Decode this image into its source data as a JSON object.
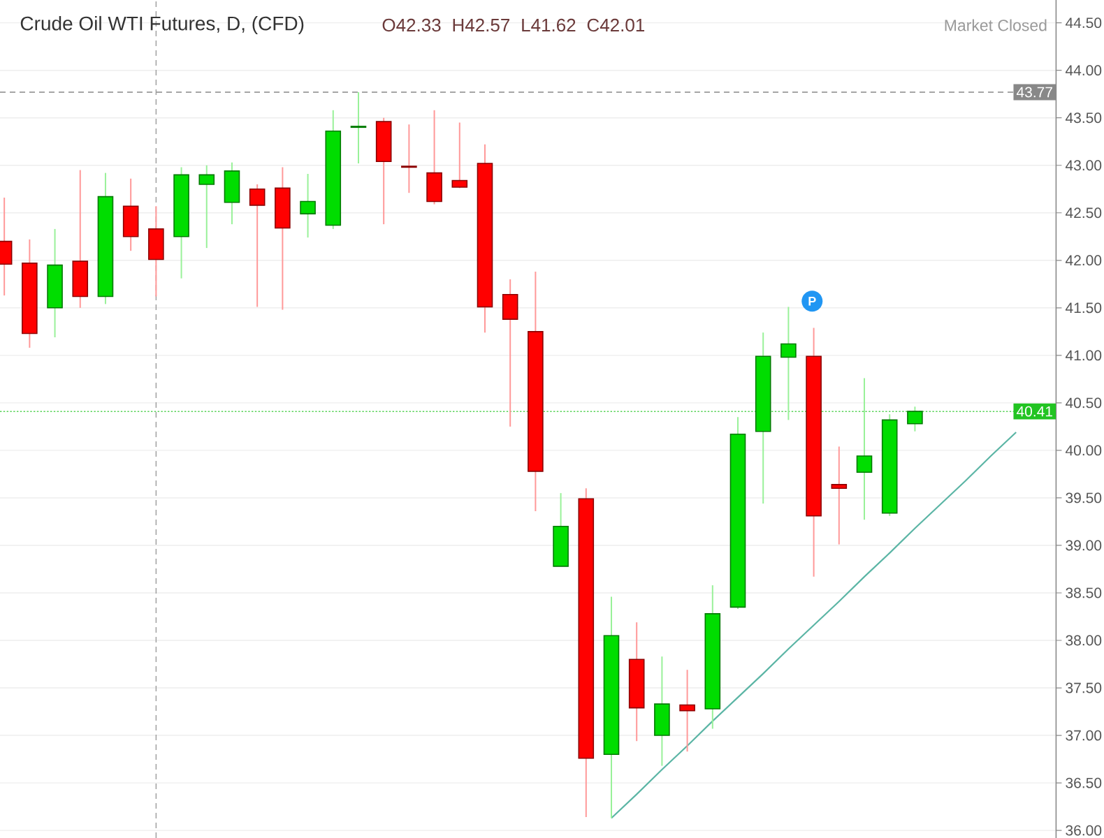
{
  "chart_data": {
    "type": "candlestick",
    "title": "Crude Oil WTI Futures, D, (CFD)",
    "annotations": [
      "O42.33",
      "H42.57",
      "L41.62",
      "C42.01",
      "Market Closed",
      {
        "text": "P",
        "y": 41.57
      }
    ],
    "categories": [
      null,
      null,
      null,
      null,
      null,
      null,
      null,
      null,
      null,
      null,
      null,
      null,
      null,
      null,
      null,
      null,
      null,
      null,
      null,
      null,
      null,
      null,
      null,
      null,
      null,
      null,
      null,
      null,
      null,
      null,
      null,
      null,
      null,
      null,
      null,
      null,
      null,
      null,
      null,
      null,
      null
    ],
    "ohlc": [
      [
        42.2,
        42.66,
        41.63,
        41.96
      ],
      [
        41.97,
        42.22,
        41.08,
        41.23
      ],
      [
        41.5,
        42.33,
        41.19,
        41.95
      ],
      [
        41.99,
        42.95,
        41.5,
        41.62
      ],
      [
        41.62,
        42.92,
        41.54,
        42.67
      ],
      [
        42.57,
        42.86,
        42.1,
        42.25
      ],
      [
        42.33,
        42.57,
        41.62,
        42.01
      ],
      [
        42.25,
        42.98,
        41.81,
        42.9
      ],
      [
        42.8,
        43.0,
        42.13,
        42.9
      ],
      [
        42.61,
        43.03,
        42.38,
        42.94
      ],
      [
        42.75,
        42.8,
        41.51,
        42.58
      ],
      [
        42.76,
        42.98,
        41.48,
        42.34
      ],
      [
        42.49,
        42.91,
        42.24,
        42.62
      ],
      [
        42.37,
        43.58,
        42.33,
        43.36
      ],
      [
        43.4,
        43.77,
        43.02,
        43.41
      ],
      [
        43.46,
        43.5,
        42.38,
        43.04
      ],
      [
        42.99,
        43.43,
        42.71,
        42.98
      ],
      [
        42.92,
        43.58,
        42.59,
        42.62
      ],
      [
        42.84,
        43.45,
        42.76,
        42.77
      ],
      [
        43.02,
        43.22,
        41.24,
        41.51
      ],
      [
        41.64,
        41.8,
        40.25,
        41.38
      ],
      [
        41.25,
        41.88,
        39.36,
        39.78
      ],
      [
        38.78,
        39.55,
        38.78,
        39.2
      ],
      [
        39.49,
        39.6,
        36.14,
        36.76
      ],
      [
        36.8,
        38.46,
        36.13,
        38.05
      ],
      [
        37.8,
        38.19,
        36.94,
        37.29
      ],
      [
        37.0,
        37.83,
        36.68,
        37.33
      ],
      [
        37.32,
        37.69,
        36.83,
        37.26
      ],
      [
        37.28,
        38.58,
        37.07,
        38.28
      ],
      [
        38.35,
        40.35,
        38.33,
        40.17
      ],
      [
        40.2,
        41.24,
        39.44,
        40.99
      ],
      [
        40.98,
        41.51,
        40.32,
        41.12
      ],
      [
        40.99,
        41.29,
        38.67,
        39.31
      ],
      [
        39.64,
        40.04,
        39.01,
        39.6
      ],
      [
        39.77,
        40.76,
        39.27,
        39.94
      ],
      [
        39.34,
        40.38,
        39.31,
        40.32
      ],
      [
        40.28,
        40.46,
        40.2,
        40.41
      ],
      null,
      null,
      null,
      null
    ],
    "colors": [
      "#ff0000",
      "#ff0000",
      "#00dd00",
      "#ff0000",
      "#00dd00",
      "#ff0000",
      "#ff0000",
      "#00dd00",
      "#00dd00",
      "#00dd00",
      "#ff0000",
      "#ff0000",
      "#00dd00",
      "#00dd00",
      "#00dd00",
      "#ff0000",
      "#ff0000",
      "#ff0000",
      "#ff0000",
      "#ff0000",
      "#ff0000",
      "#ff0000",
      "#00dd00",
      "#ff0000",
      "#00dd00",
      "#ff0000",
      "#00dd00",
      "#ff0000",
      "#00dd00",
      "#00dd00",
      "#00dd00",
      "#00dd00",
      "#ff0000",
      "#ff0000",
      "#00dd00",
      "#00dd00",
      "#00dd00",
      null,
      null,
      null,
      null
    ],
    "series": [
      {
        "type": "line",
        "color": "#5bb5a5",
        "values": [
          null,
          null,
          null,
          null,
          null,
          null,
          null,
          null,
          null,
          null,
          null,
          null,
          null,
          null,
          null,
          null,
          null,
          null,
          null,
          null,
          null,
          null,
          null,
          null,
          36.13,
          36.38,
          36.64,
          36.89,
          37.15,
          37.4,
          37.65,
          37.91,
          38.16,
          38.41,
          38.67,
          38.92,
          39.18,
          39.43,
          39.68,
          39.94,
          40.19
        ]
      }
    ],
    "ylim": [
      35.92,
      44.74
    ],
    "yticks": [
      {
        "value": 36,
        "label": "36.00"
      },
      {
        "value": 36.5,
        "label": "36.50"
      },
      {
        "value": 37,
        "label": "37.00"
      },
      {
        "value": 37.5,
        "label": "37.50"
      },
      {
        "value": 38,
        "label": "38.00"
      },
      {
        "value": 38.5,
        "label": "38.50"
      },
      {
        "value": 39,
        "label": "39.00"
      },
      {
        "value": 39.5,
        "label": "39.50"
      },
      {
        "value": 40,
        "label": "40.00"
      },
      {
        "value": 40.5,
        "label": "40.50"
      },
      {
        "value": 41,
        "label": "41.00"
      },
      {
        "value": 41.5,
        "label": "41.50"
      },
      {
        "value": 42,
        "label": "42.00"
      },
      {
        "value": 42.5,
        "label": "42.50"
      },
      {
        "value": 43,
        "label": "43.00"
      },
      {
        "value": 43.5,
        "label": "43.50"
      },
      {
        "value": 44,
        "label": "44.00"
      },
      {
        "value": 44.5,
        "label": "44.50"
      }
    ],
    "tick_labels": "y",
    "grid": "y",
    "ref_lines": [
      {
        "axis": "y",
        "value": 43.77,
        "label": "43.77",
        "color": "#888888",
        "line_style": "dashed"
      },
      {
        "axis": "y",
        "value": 40.41,
        "label": "40.41",
        "color": "#22c422",
        "line_style": "dotted"
      }
    ]
  }
}
